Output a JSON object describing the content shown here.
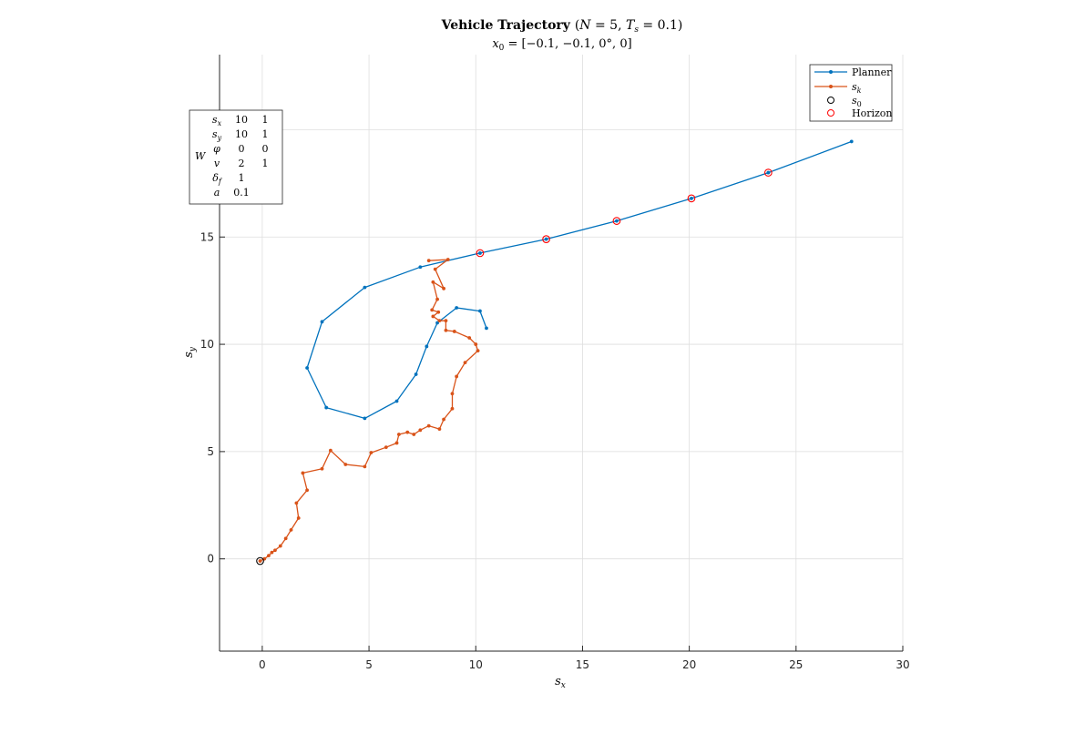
{
  "chart_data": {
    "type": "line",
    "title": "Vehicle Trajectory (N = 5, Ts = 0.1)",
    "subtitle": "x0 = [−0.1, −0.1, 0°, 0]",
    "xlabel": "sx",
    "ylabel": "sy",
    "xlim": [
      -2,
      30
    ],
    "ylim": [
      -4.3,
      23.5
    ],
    "xticks": [
      0,
      5,
      10,
      15,
      20,
      25,
      30
    ],
    "yticks": [
      0,
      5,
      10,
      15
    ],
    "grid": true,
    "legend_position": "top-right",
    "series": [
      {
        "name": "Planner",
        "color": "#0072BD",
        "marker": "dot",
        "points": [
          [
            10.5,
            10.75
          ],
          [
            10.2,
            11.55
          ],
          [
            9.1,
            11.7
          ],
          [
            8.2,
            11.0
          ],
          [
            7.7,
            9.9
          ],
          [
            7.2,
            8.6
          ],
          [
            6.3,
            7.35
          ],
          [
            4.8,
            6.55
          ],
          [
            3.0,
            7.05
          ],
          [
            2.1,
            8.9
          ],
          [
            2.8,
            11.05
          ],
          [
            4.8,
            12.65
          ],
          [
            7.4,
            13.6
          ],
          [
            10.2,
            14.25
          ],
          [
            13.3,
            14.9
          ],
          [
            16.6,
            15.75
          ],
          [
            20.1,
            16.8
          ],
          [
            23.7,
            18.0
          ],
          [
            27.6,
            19.45
          ]
        ]
      },
      {
        "name": "s_k",
        "color": "#D95319",
        "marker": "dot",
        "points": [
          [
            -0.1,
            -0.1
          ],
          [
            0.1,
            0.0
          ],
          [
            0.3,
            0.15
          ],
          [
            0.45,
            0.3
          ],
          [
            0.6,
            0.4
          ],
          [
            0.85,
            0.6
          ],
          [
            1.1,
            0.95
          ],
          [
            1.35,
            1.35
          ],
          [
            1.7,
            1.9
          ],
          [
            1.6,
            2.6
          ],
          [
            2.1,
            3.2
          ],
          [
            1.9,
            4.0
          ],
          [
            2.8,
            4.2
          ],
          [
            3.2,
            5.05
          ],
          [
            3.9,
            4.4
          ],
          [
            4.8,
            4.3
          ],
          [
            5.1,
            4.95
          ],
          [
            5.8,
            5.2
          ],
          [
            6.3,
            5.4
          ],
          [
            6.4,
            5.8
          ],
          [
            6.8,
            5.9
          ],
          [
            7.1,
            5.8
          ],
          [
            7.4,
            6.0
          ],
          [
            7.8,
            6.2
          ],
          [
            8.3,
            6.05
          ],
          [
            8.5,
            6.5
          ],
          [
            8.9,
            7.0
          ],
          [
            8.9,
            7.7
          ],
          [
            9.1,
            8.5
          ],
          [
            9.5,
            9.15
          ],
          [
            10.1,
            9.7
          ],
          [
            10.0,
            10.0
          ],
          [
            9.7,
            10.3
          ],
          [
            9.0,
            10.6
          ],
          [
            8.6,
            10.65
          ],
          [
            8.6,
            11.1
          ],
          [
            8.3,
            11.1
          ],
          [
            8.0,
            11.3
          ],
          [
            8.25,
            11.5
          ],
          [
            7.95,
            11.6
          ],
          [
            8.2,
            12.1
          ],
          [
            8.0,
            12.9
          ],
          [
            8.5,
            12.6
          ],
          [
            8.1,
            13.5
          ],
          [
            8.7,
            13.95
          ],
          [
            7.8,
            13.9
          ]
        ]
      }
    ],
    "markers": [
      {
        "name": "s_0",
        "color": "#000000",
        "points": [
          [
            -0.1,
            -0.1
          ]
        ]
      },
      {
        "name": "Horizon",
        "color": "#FF0000",
        "points": [
          [
            10.2,
            14.25
          ],
          [
            13.3,
            14.9
          ],
          [
            16.6,
            15.75
          ],
          [
            20.1,
            16.8
          ],
          [
            23.7,
            18.0
          ]
        ]
      }
    ],
    "legend": [
      "Planner",
      "s_k",
      "s_0",
      "Horizon"
    ],
    "weights_table": {
      "label": "W",
      "rows": [
        {
          "symbol": "s_x",
          "values": [
            "10",
            "1"
          ]
        },
        {
          "symbol": "s_y",
          "values": [
            "10",
            "1"
          ]
        },
        {
          "symbol": "φ",
          "values": [
            "0",
            "0"
          ]
        },
        {
          "symbol": "v",
          "values": [
            "2",
            "1"
          ]
        },
        {
          "symbol": "δ_f",
          "values": [
            "1"
          ]
        },
        {
          "symbol": "a",
          "values": [
            "0.1"
          ]
        }
      ]
    }
  }
}
